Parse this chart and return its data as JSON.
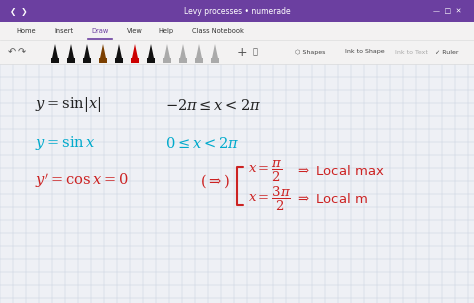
{
  "title": "Levy processes • numerade",
  "bg_color": "#eef0f5",
  "grid_color": "#c8d0e0",
  "toolbar_bg": "#6b3fa0",
  "nav_bg": "#f3f2f2",
  "content_bg": "#eef0f5",
  "line1_color": "#222222",
  "line2_color": "#00aacc",
  "line3_color": "#cc2222",
  "figsize": [
    4.74,
    3.03
  ],
  "dpi": 100,
  "nav_items": [
    [
      "Home",
      0.055
    ],
    [
      "Insert",
      0.135
    ],
    [
      "Draw",
      0.21
    ],
    [
      "View",
      0.285
    ],
    [
      "Help",
      0.35
    ],
    [
      "Class Notebook",
      0.46
    ]
  ],
  "pen_colors": [
    "#111111",
    "#111111",
    "#111111",
    "#7B3F00",
    "#111111",
    "#cc0000",
    "#111111",
    "#aaaaaa",
    "#aaaaaa",
    "#aaaaaa",
    "#aaaaaa"
  ]
}
